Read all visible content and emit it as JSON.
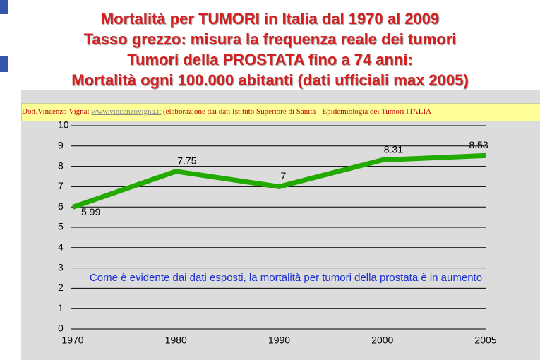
{
  "header": {
    "title_lines": [
      "Mortalità per TUMORI in Italia dal 1970 al 2009",
      "Tasso grezzo: misura la frequenza reale dei tumori",
      "Tumori della PROSTATA fino a 74 anni:",
      "Mortalità ogni 100.000 abitanti (dati ufficiali max 2005)"
    ],
    "banner": {
      "author": "Dott.Vincenzo Vigna:",
      "link": "www.vincenzovigna.it",
      "source": "(elaborazione dai dati Istituto Superiore di Sanità - Epidemiologia dei Tumori ITALIA"
    }
  },
  "chart_data": {
    "type": "line",
    "categories": [
      "1970",
      "1980",
      "1990",
      "2000",
      "2005"
    ],
    "values": [
      5.99,
      7.75,
      7,
      8.31,
      8.53
    ],
    "color": "#22aa00",
    "ylim": [
      0,
      10
    ],
    "yticks": [
      0,
      1,
      2,
      3,
      4,
      5,
      6,
      7,
      8,
      9,
      10
    ],
    "grid": true,
    "annotation": "Come è evidente dai dati esposti, la mortalità per tumori della prostata è in aumento"
  }
}
